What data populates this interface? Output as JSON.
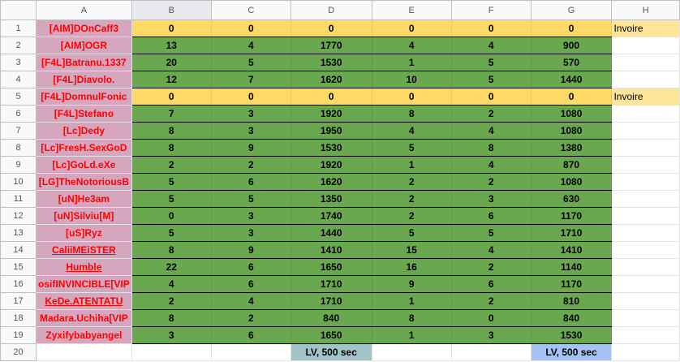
{
  "columns": [
    "A",
    "B",
    "C",
    "D",
    "E",
    "F",
    "G",
    "H"
  ],
  "rows": [
    {
      "name": "[AIM]DOnCaff3",
      "vals": [
        0,
        0,
        0,
        0,
        0,
        0
      ],
      "note": "Invoire",
      "zero": true
    },
    {
      "name": "[AIM]OGR",
      "vals": [
        13,
        4,
        1770,
        4,
        4,
        900
      ]
    },
    {
      "name": "[F4L]Batranu.1337",
      "vals": [
        20,
        5,
        1530,
        1,
        5,
        570
      ]
    },
    {
      "name": "[F4L]Diavolo.",
      "vals": [
        12,
        7,
        1620,
        10,
        5,
        1440
      ]
    },
    {
      "name": "[F4L]DomnulFonic",
      "vals": [
        0,
        0,
        0,
        0,
        0,
        0
      ],
      "note": "Invoire",
      "zero": true
    },
    {
      "name": "[F4L]Stefano",
      "vals": [
        7,
        3,
        1920,
        8,
        2,
        1080
      ]
    },
    {
      "name": "[Lc]Dedy",
      "vals": [
        8,
        3,
        1950,
        4,
        4,
        1080
      ]
    },
    {
      "name": "[Lc]FresH.SexGoD",
      "vals": [
        8,
        9,
        1530,
        5,
        8,
        1380
      ]
    },
    {
      "name": "[Lc]GoLd.eXe",
      "vals": [
        2,
        2,
        1920,
        1,
        4,
        870
      ]
    },
    {
      "name": "[LG]TheNotoriousB",
      "vals": [
        5,
        6,
        1620,
        2,
        2,
        1080
      ]
    },
    {
      "name": "[uN]He3am",
      "vals": [
        5,
        5,
        1350,
        2,
        3,
        630
      ]
    },
    {
      "name": "[uN]Silviu[M]",
      "vals": [
        0,
        3,
        1740,
        2,
        6,
        1170
      ]
    },
    {
      "name": "[uS]Ryz",
      "vals": [
        5,
        3,
        1440,
        5,
        5,
        1710
      ]
    },
    {
      "name": "CaliiMEiSTER",
      "vals": [
        8,
        9,
        1410,
        15,
        4,
        1410
      ],
      "link": true
    },
    {
      "name": "Humble",
      "vals": [
        22,
        6,
        1650,
        16,
        2,
        1140
      ],
      "link": true
    },
    {
      "name": "osifINVINCIBLE[VIP",
      "vals": [
        4,
        6,
        1710,
        9,
        6,
        1170
      ]
    },
    {
      "name": "KeDe.ATENTATU",
      "vals": [
        2,
        4,
        1710,
        1,
        2,
        810
      ],
      "link": true
    },
    {
      "name": "Madara.Uchiha[VIP",
      "vals": [
        8,
        2,
        840,
        8,
        0,
        840
      ]
    },
    {
      "name": "Zyxifybabyangel",
      "vals": [
        3,
        6,
        1650,
        1,
        3,
        1530
      ]
    }
  ],
  "footer": {
    "d_label": "LV, 500 sec",
    "g_label": "LV, 500 sec"
  },
  "colors": {
    "name_bg": "#d5a6bd",
    "name_text": "#ff0000",
    "green": "#6aa84f",
    "yellow": "#ffd966",
    "note_bg": "#ffe599",
    "lv_d": "#a2c4c9",
    "lv_g": "#a4c2f4"
  }
}
